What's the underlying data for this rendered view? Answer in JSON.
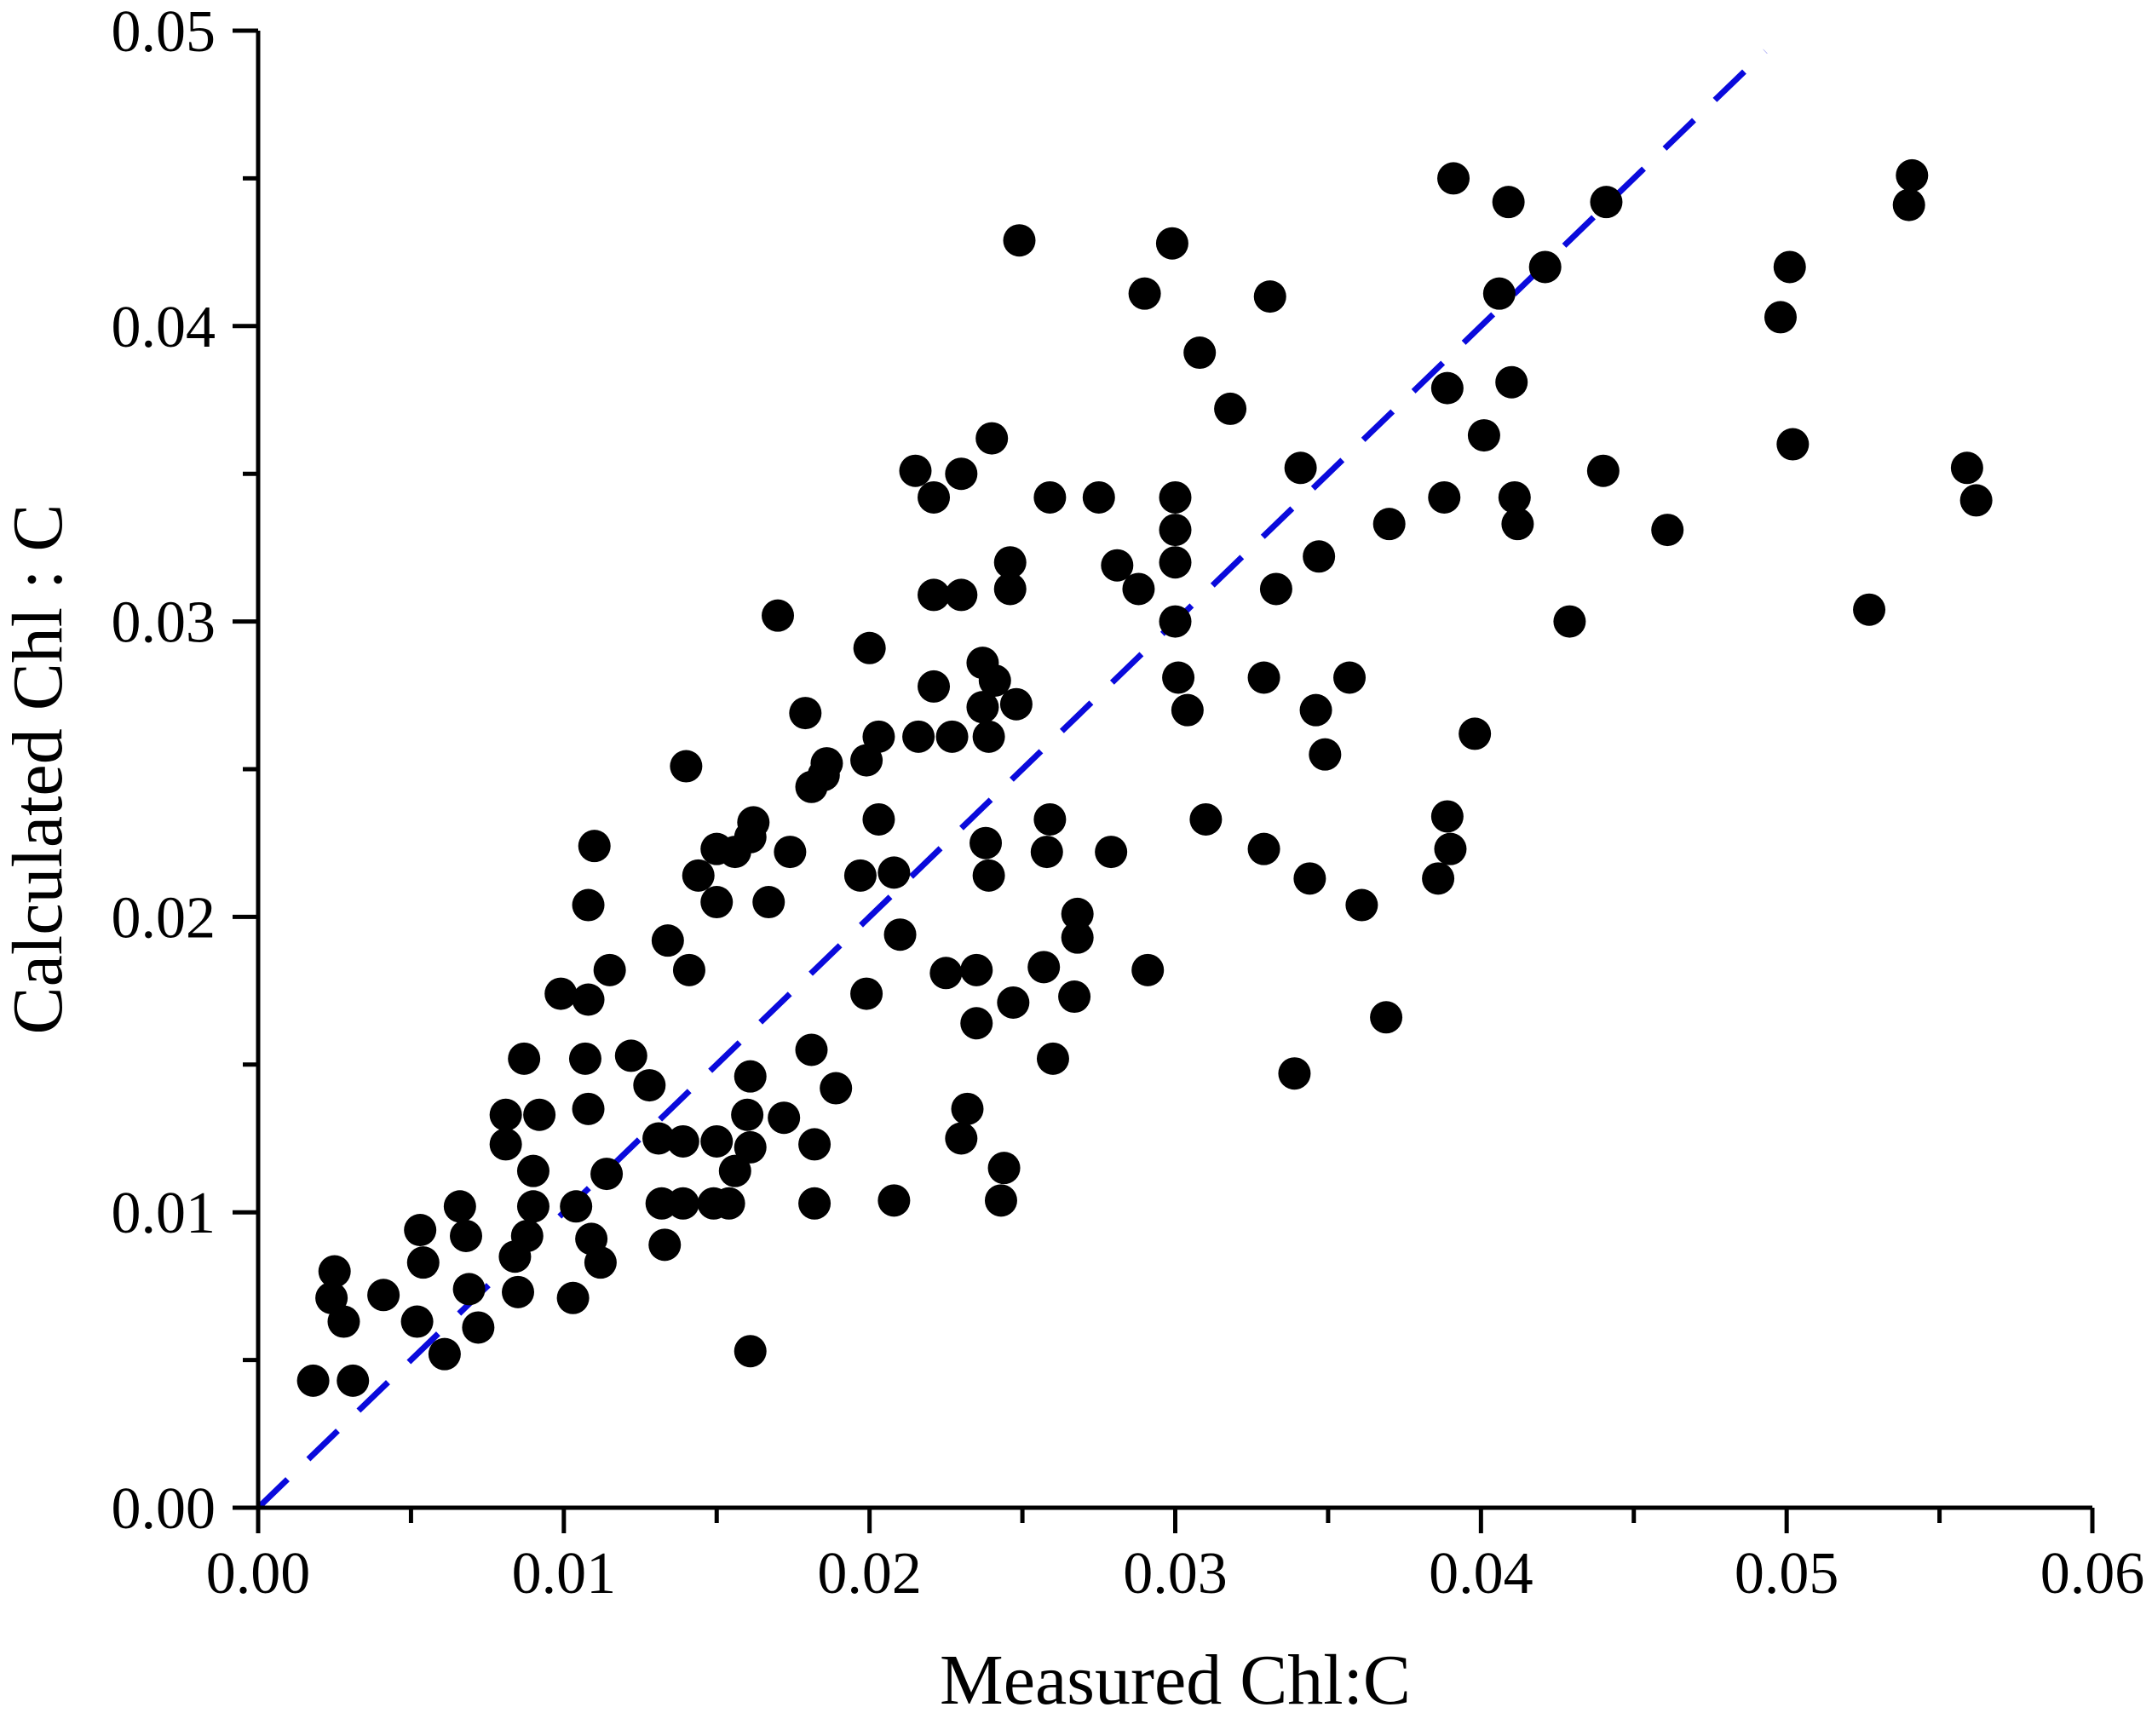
{
  "chart_data": {
    "type": "scatter",
    "xlabel": "Measured Chl:C",
    "ylabel": "Calculated Chl : C",
    "xlim": [
      0,
      0.06
    ],
    "ylim": [
      0,
      0.05
    ],
    "x_ticks": [
      "0.00",
      "0.01",
      "0.02",
      "0.03",
      "0.04",
      "0.05",
      "0.06"
    ],
    "y_ticks": [
      "0.00",
      "0.01",
      "0.02",
      "0.03",
      "0.04",
      "0.05"
    ],
    "grid": false,
    "legend": "none",
    "marker_color": "#000000",
    "reference_line": {
      "style": "dashed",
      "color": "#0a0adc",
      "from": [
        0,
        0
      ],
      "to": [
        0.0493,
        0.0493
      ]
    },
    "points": [
      [
        0.0018,
        0.0043
      ],
      [
        0.0024,
        0.0071
      ],
      [
        0.0025,
        0.008
      ],
      [
        0.0028,
        0.0063
      ],
      [
        0.0031,
        0.0043
      ],
      [
        0.0041,
        0.0072
      ],
      [
        0.0052,
        0.0063
      ],
      [
        0.0053,
        0.0094
      ],
      [
        0.0054,
        0.0083
      ],
      [
        0.0061,
        0.0052
      ],
      [
        0.0066,
        0.0102
      ],
      [
        0.0068,
        0.0092
      ],
      [
        0.0069,
        0.0074
      ],
      [
        0.0072,
        0.0061
      ],
      [
        0.0081,
        0.0133
      ],
      [
        0.0081,
        0.0123
      ],
      [
        0.0084,
        0.0085
      ],
      [
        0.0085,
        0.0073
      ],
      [
        0.0087,
        0.0152
      ],
      [
        0.0088,
        0.0092
      ],
      [
        0.009,
        0.0114
      ],
      [
        0.009,
        0.0102
      ],
      [
        0.0092,
        0.0133
      ],
      [
        0.0099,
        0.0174
      ],
      [
        0.0103,
        0.0071
      ],
      [
        0.0104,
        0.0102
      ],
      [
        0.0107,
        0.0152
      ],
      [
        0.0108,
        0.0135
      ],
      [
        0.0108,
        0.0172
      ],
      [
        0.0108,
        0.0204
      ],
      [
        0.0109,
        0.0091
      ],
      [
        0.011,
        0.0224
      ],
      [
        0.0112,
        0.0083
      ],
      [
        0.0114,
        0.0113
      ],
      [
        0.0115,
        0.0182
      ],
      [
        0.0122,
        0.0153
      ],
      [
        0.0128,
        0.0143
      ],
      [
        0.0131,
        0.0125
      ],
      [
        0.0132,
        0.0103
      ],
      [
        0.0133,
        0.0089
      ],
      [
        0.0134,
        0.0192
      ],
      [
        0.0139,
        0.0103
      ],
      [
        0.0139,
        0.0124
      ],
      [
        0.014,
        0.0251
      ],
      [
        0.0141,
        0.0182
      ],
      [
        0.0144,
        0.0214
      ],
      [
        0.0149,
        0.0103
      ],
      [
        0.015,
        0.0223
      ],
      [
        0.015,
        0.0124
      ],
      [
        0.015,
        0.0205
      ],
      [
        0.0154,
        0.0103
      ],
      [
        0.0156,
        0.0114
      ],
      [
        0.0156,
        0.0222
      ],
      [
        0.016,
        0.0133
      ],
      [
        0.0161,
        0.0053
      ],
      [
        0.0161,
        0.0122
      ],
      [
        0.0161,
        0.0146
      ],
      [
        0.0161,
        0.0227
      ],
      [
        0.0162,
        0.0232
      ],
      [
        0.0167,
        0.0205
      ],
      [
        0.017,
        0.0302
      ],
      [
        0.0172,
        0.0132
      ],
      [
        0.0174,
        0.0222
      ],
      [
        0.0179,
        0.0269
      ],
      [
        0.0181,
        0.0244
      ],
      [
        0.0181,
        0.0155
      ],
      [
        0.0182,
        0.0123
      ],
      [
        0.0182,
        0.0103
      ],
      [
        0.0185,
        0.0248
      ],
      [
        0.0186,
        0.0252
      ],
      [
        0.0189,
        0.0142
      ],
      [
        0.0197,
        0.0214
      ],
      [
        0.0199,
        0.0174
      ],
      [
        0.0199,
        0.0253
      ],
      [
        0.02,
        0.0291
      ],
      [
        0.0203,
        0.0261
      ],
      [
        0.0203,
        0.0233
      ],
      [
        0.0208,
        0.0215
      ],
      [
        0.0208,
        0.0104
      ],
      [
        0.021,
        0.0194
      ],
      [
        0.0215,
        0.0351
      ],
      [
        0.0216,
        0.0261
      ],
      [
        0.0221,
        0.0342
      ],
      [
        0.0221,
        0.0309
      ],
      [
        0.0221,
        0.0278
      ],
      [
        0.0225,
        0.0181
      ],
      [
        0.0227,
        0.0261
      ],
      [
        0.023,
        0.035
      ],
      [
        0.023,
        0.0309
      ],
      [
        0.023,
        0.0125
      ],
      [
        0.0232,
        0.0135
      ],
      [
        0.0235,
        0.0164
      ],
      [
        0.0235,
        0.0182
      ],
      [
        0.0237,
        0.0286
      ],
      [
        0.0237,
        0.0271
      ],
      [
        0.0238,
        0.0225
      ],
      [
        0.0239,
        0.0214
      ],
      [
        0.0239,
        0.0261
      ],
      [
        0.024,
        0.0362
      ],
      [
        0.0241,
        0.028
      ],
      [
        0.0243,
        0.0104
      ],
      [
        0.0244,
        0.0115
      ],
      [
        0.0246,
        0.032
      ],
      [
        0.0246,
        0.0311
      ],
      [
        0.0247,
        0.0171
      ],
      [
        0.0248,
        0.0272
      ],
      [
        0.0249,
        0.0429
      ],
      [
        0.0257,
        0.0183
      ],
      [
        0.0258,
        0.0222
      ],
      [
        0.0259,
        0.0342
      ],
      [
        0.0259,
        0.0233
      ],
      [
        0.026,
        0.0152
      ],
      [
        0.0267,
        0.0173
      ],
      [
        0.0268,
        0.0201
      ],
      [
        0.0268,
        0.0193
      ],
      [
        0.0275,
        0.0342
      ],
      [
        0.0279,
        0.0222
      ],
      [
        0.0281,
        0.0319
      ],
      [
        0.0288,
        0.0311
      ],
      [
        0.029,
        0.0411
      ],
      [
        0.0291,
        0.0182
      ],
      [
        0.0299,
        0.0428
      ],
      [
        0.03,
        0.0342
      ],
      [
        0.03,
        0.0331
      ],
      [
        0.03,
        0.032
      ],
      [
        0.03,
        0.03
      ],
      [
        0.0301,
        0.0281
      ],
      [
        0.0304,
        0.027
      ],
      [
        0.0308,
        0.0391
      ],
      [
        0.031,
        0.0233
      ],
      [
        0.0318,
        0.0372
      ],
      [
        0.0329,
        0.0281
      ],
      [
        0.0329,
        0.0223
      ],
      [
        0.0331,
        0.041
      ],
      [
        0.0333,
        0.0311
      ],
      [
        0.0339,
        0.0147
      ],
      [
        0.0341,
        0.0352
      ],
      [
        0.0344,
        0.0213
      ],
      [
        0.0346,
        0.027
      ],
      [
        0.0347,
        0.0322
      ],
      [
        0.0349,
        0.0255
      ],
      [
        0.0357,
        0.0281
      ],
      [
        0.0361,
        0.0204
      ],
      [
        0.0369,
        0.0166
      ],
      [
        0.037,
        0.0333
      ],
      [
        0.0386,
        0.0213
      ],
      [
        0.0388,
        0.0342
      ],
      [
        0.0389,
        0.0234
      ],
      [
        0.0389,
        0.0379
      ],
      [
        0.039,
        0.0223
      ],
      [
        0.0391,
        0.045
      ],
      [
        0.0398,
        0.0262
      ],
      [
        0.0401,
        0.0363
      ],
      [
        0.0406,
        0.0411
      ],
      [
        0.0409,
        0.0442
      ],
      [
        0.041,
        0.0381
      ],
      [
        0.0411,
        0.0342
      ],
      [
        0.0412,
        0.0333
      ],
      [
        0.0421,
        0.042
      ],
      [
        0.0429,
        0.03
      ],
      [
        0.044,
        0.0351
      ],
      [
        0.0441,
        0.0442
      ],
      [
        0.0461,
        0.0331
      ],
      [
        0.0498,
        0.0403
      ],
      [
        0.0501,
        0.042
      ],
      [
        0.0502,
        0.036
      ],
      [
        0.0527,
        0.0304
      ],
      [
        0.054,
        0.0441
      ],
      [
        0.0541,
        0.0451
      ],
      [
        0.0559,
        0.0352
      ],
      [
        0.0562,
        0.0341
      ]
    ]
  }
}
